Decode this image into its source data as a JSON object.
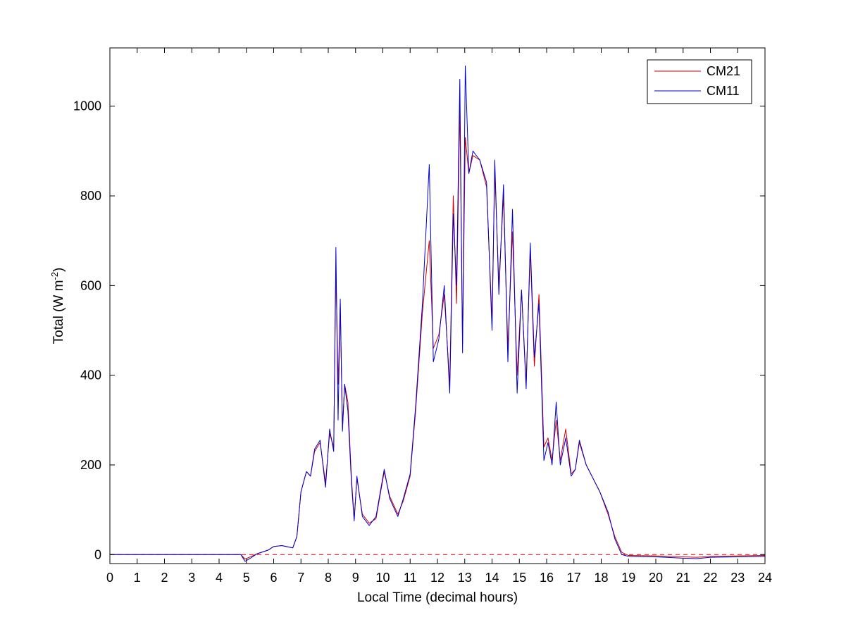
{
  "chart_data": {
    "type": "line",
    "title": "",
    "xlabel": "Local Time (decimal hours)",
    "ylabel_main": "Total (W m",
    "ylabel_sup": "-2",
    "ylabel_close": ")",
    "xlim": [
      0,
      24
    ],
    "ylim": [
      -20,
      1130
    ],
    "xticks": [
      "0",
      "1",
      "2",
      "3",
      "4",
      "5",
      "6",
      "7",
      "8",
      "9",
      "10",
      "11",
      "12",
      "13",
      "14",
      "15",
      "16",
      "17",
      "18",
      "19",
      "20",
      "21",
      "22",
      "23",
      "24"
    ],
    "yticks": [
      "0",
      "200",
      "400",
      "600",
      "800",
      "1000"
    ],
    "grid": false,
    "legend_position": "top-right",
    "zero_line": {
      "y": 0,
      "color": "#cc0000",
      "style": "dashed"
    },
    "series": [
      {
        "name": "CM21",
        "color": "#cc0000",
        "x": [
          0,
          4.8,
          4.95,
          5.15,
          5.4,
          5.8,
          6.0,
          6.3,
          6.7,
          6.85,
          7.0,
          7.2,
          7.35,
          7.5,
          7.7,
          7.9,
          8.05,
          8.2,
          8.28,
          8.36,
          8.44,
          8.52,
          8.6,
          8.72,
          8.85,
          8.95,
          9.05,
          9.25,
          9.5,
          9.75,
          10.05,
          10.25,
          10.55,
          10.75,
          11.0,
          11.2,
          11.45,
          11.7,
          11.85,
          12.05,
          12.25,
          12.45,
          12.58,
          12.7,
          12.82,
          12.92,
          13.02,
          13.15,
          13.3,
          13.55,
          13.8,
          14.0,
          14.1,
          14.25,
          14.42,
          14.58,
          14.75,
          14.92,
          15.08,
          15.25,
          15.4,
          15.55,
          15.72,
          15.9,
          16.05,
          16.2,
          16.35,
          16.5,
          16.7,
          16.9,
          17.05,
          17.2,
          17.45,
          17.7,
          17.95,
          18.25,
          18.5,
          18.75,
          19.0,
          20.0,
          21.0,
          21.5,
          22.0,
          23.0,
          24.0
        ],
        "values": [
          0,
          0,
          -10,
          -5,
          2,
          10,
          18,
          20,
          15,
          40,
          140,
          185,
          175,
          230,
          250,
          160,
          270,
          240,
          640,
          380,
          560,
          280,
          380,
          340,
          170,
          80,
          170,
          90,
          70,
          80,
          185,
          130,
          90,
          120,
          175,
          320,
          540,
          700,
          460,
          490,
          580,
          380,
          800,
          560,
          1000,
          470,
          930,
          850,
          890,
          880,
          820,
          520,
          860,
          600,
          800,
          460,
          720,
          400,
          590,
          380,
          680,
          420,
          580,
          240,
          260,
          210,
          300,
          210,
          280,
          180,
          190,
          250,
          200,
          170,
          140,
          90,
          40,
          5,
          -2,
          -3,
          -5,
          -6,
          -4,
          -3,
          -2
        ]
      },
      {
        "name": "CM11",
        "color": "#0000cc",
        "x": [
          0,
          4.8,
          4.95,
          5.15,
          5.4,
          5.8,
          6.0,
          6.3,
          6.7,
          6.85,
          7.0,
          7.2,
          7.35,
          7.5,
          7.7,
          7.9,
          8.05,
          8.2,
          8.28,
          8.36,
          8.44,
          8.52,
          8.6,
          8.72,
          8.85,
          8.95,
          9.05,
          9.25,
          9.5,
          9.75,
          10.05,
          10.25,
          10.55,
          10.75,
          11.0,
          11.2,
          11.45,
          11.7,
          11.85,
          12.05,
          12.25,
          12.45,
          12.58,
          12.7,
          12.82,
          12.92,
          13.02,
          13.15,
          13.3,
          13.55,
          13.8,
          14.0,
          14.1,
          14.25,
          14.42,
          14.58,
          14.75,
          14.92,
          15.08,
          15.25,
          15.4,
          15.55,
          15.72,
          15.9,
          16.05,
          16.2,
          16.35,
          16.5,
          16.7,
          16.9,
          17.05,
          17.2,
          17.45,
          17.7,
          17.95,
          18.25,
          18.5,
          18.75,
          19.0,
          20.0,
          21.0,
          21.5,
          22.0,
          23.0,
          24.0
        ],
        "values": [
          0,
          0,
          -15,
          -8,
          2,
          10,
          18,
          20,
          15,
          40,
          140,
          185,
          175,
          235,
          255,
          150,
          280,
          230,
          685,
          300,
          570,
          275,
          380,
          320,
          160,
          75,
          175,
          85,
          65,
          85,
          190,
          125,
          85,
          125,
          180,
          330,
          560,
          870,
          430,
          480,
          600,
          360,
          760,
          600,
          1060,
          450,
          1090,
          850,
          900,
          880,
          830,
          500,
          880,
          580,
          825,
          430,
          770,
          360,
          590,
          370,
          695,
          440,
          560,
          210,
          250,
          200,
          340,
          200,
          260,
          175,
          190,
          255,
          200,
          170,
          140,
          95,
          35,
          0,
          -4,
          -5,
          -8,
          -9,
          -6,
          -5,
          -4
        ]
      }
    ]
  }
}
